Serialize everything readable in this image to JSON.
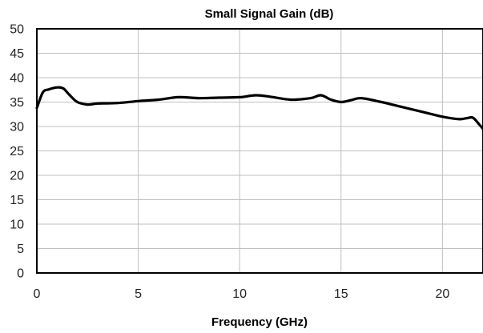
{
  "chart_data": {
    "type": "line",
    "title": "Small Signal Gain (dB)",
    "xlabel": "Frequency (GHz)",
    "ylabel": "",
    "xlim": [
      0,
      22
    ],
    "ylim": [
      0,
      50
    ],
    "xticks": [
      0,
      5,
      10,
      15,
      20
    ],
    "yticks": [
      0,
      5,
      10,
      15,
      20,
      25,
      30,
      35,
      40,
      45,
      50
    ],
    "grid": true,
    "legend": "none",
    "series": [
      {
        "x": [
          0,
          0.3,
          0.6,
          1.0,
          1.3,
          1.6,
          2.0,
          2.5,
          3.0,
          4.0,
          5.0,
          6.0,
          7.0,
          8.0,
          9.0,
          10.0,
          10.8,
          11.5,
          12.5,
          13.5,
          14.0,
          14.5,
          15.0,
          15.5,
          16.0,
          17.0,
          18.0,
          19.0,
          20.0,
          20.8,
          21.2,
          21.5,
          21.8,
          22.0
        ],
        "values": [
          33.8,
          37.0,
          37.6,
          38.0,
          37.8,
          36.5,
          35.0,
          34.5,
          34.7,
          34.8,
          35.2,
          35.5,
          36.0,
          35.8,
          35.9,
          36.0,
          36.4,
          36.1,
          35.5,
          35.8,
          36.4,
          35.5,
          35.0,
          35.4,
          35.8,
          35.0,
          34.0,
          33.0,
          32.0,
          31.5,
          31.7,
          31.8,
          30.5,
          29.5
        ],
        "color": "#000000"
      }
    ]
  }
}
